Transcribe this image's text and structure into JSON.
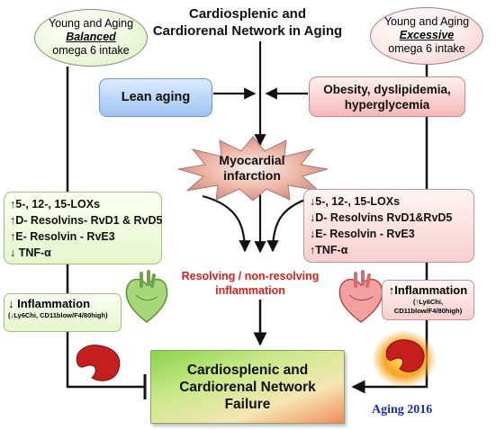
{
  "title": {
    "line1": "Cardiosplenic and",
    "line2": "Cardiorenal Network in Aging"
  },
  "left_oval": {
    "line1": "Young and Aging",
    "line2": "Balanced",
    "line3": "omega 6 intake",
    "color": "#e6f5cf"
  },
  "right_oval": {
    "line1": "Young and Aging",
    "line2": "Excessive",
    "line3": "omega 6 intake",
    "color": "#fbdada"
  },
  "lean_box": {
    "label": "Lean aging",
    "color": "#aecbf2"
  },
  "obesity_box": {
    "line1": "Obesity, dyslipidemia,",
    "line2": "hyperglycemia",
    "color": "#f7c4c4"
  },
  "infarction": {
    "line1": "Myocardial",
    "line2": "infarction",
    "icon": "explosion-burst-icon"
  },
  "left_list": {
    "items": [
      "↑5-, 12-, 15-LOXs",
      "↑D- Resolvins- RvD1 & RvD5",
      "↑E- Resolvin - RvE3",
      "↓ TNF-α"
    ]
  },
  "right_list": {
    "items": [
      "↓5-, 12-, 15-LOXs",
      "↓D- Resolvins RvD1&RvD5",
      "↓E- Resolvin - RvE3",
      "↑TNF-α"
    ]
  },
  "resolving": {
    "line1": "Resolving / non-resolving",
    "line2": "inflammation",
    "color": "#e11b1b"
  },
  "left_inflammation": {
    "title": "↓ Inflammation",
    "detail": "(↓Ly6Chi, CD11blow/F4/80high)"
  },
  "right_inflammation": {
    "title": "↑Inflammation",
    "detail_line1": "(↑Ly6Chi,",
    "detail_line2": "CD11blow/F4/80high)"
  },
  "failure_box": {
    "line1": "Cardiosplenic and",
    "line2": "Cardiorenal Network",
    "line3": "Failure"
  },
  "footer": {
    "label": "Aging 2016",
    "color": "#1c2ab7"
  },
  "icons": {
    "left_heart": "green-heart-icon",
    "right_heart": "red-heart-icon",
    "left_kidney": "kidney-icon",
    "right_kidney": "inflamed-kidney-icon"
  }
}
